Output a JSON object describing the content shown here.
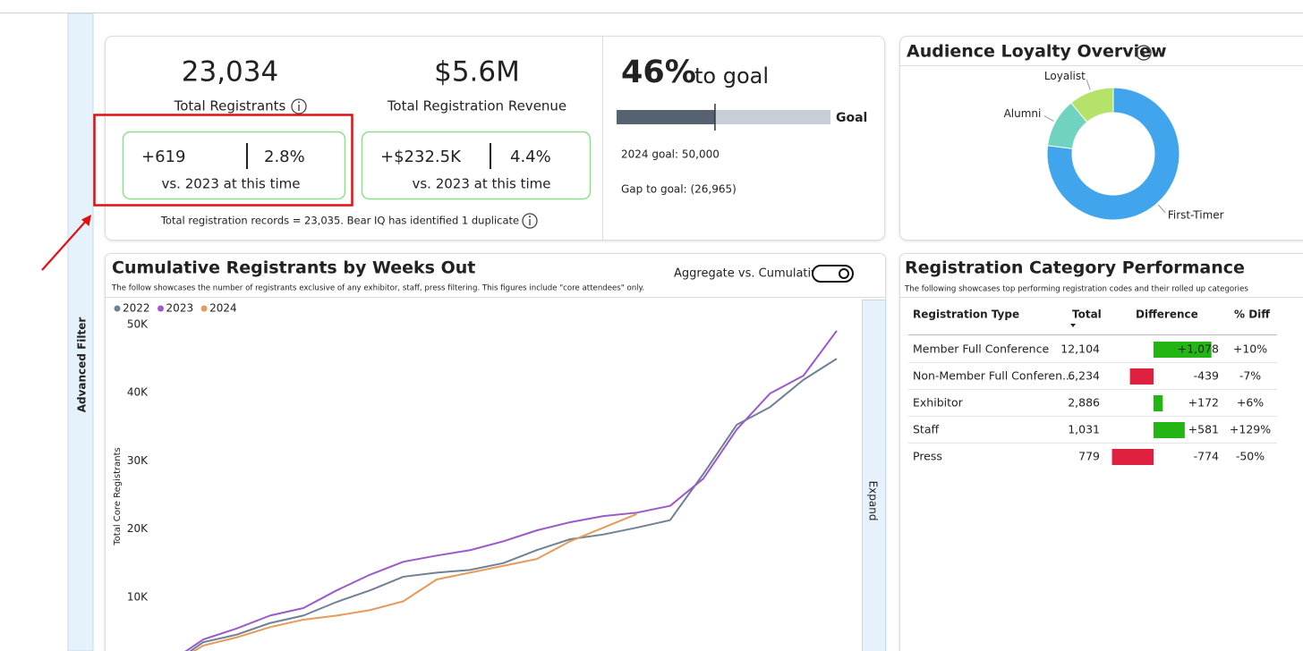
{
  "sidebar": {
    "label": "Advanced Filter"
  },
  "kpis": [
    {
      "value": "23,034",
      "label": "Total Registrants",
      "change": "+619",
      "change_pct": "2.8%",
      "comparison": "vs. 2023 at this time"
    },
    {
      "value": "$5.6M",
      "label": "Total Registration Revenue",
      "change": "+$232.5K",
      "change_pct": "4.4%",
      "comparison": "vs. 2023 at this time"
    }
  ],
  "records_note": "Total registration records = 23,035. Bear IQ has identified 1 duplicate",
  "goal": {
    "percent": {
      "value": 46,
      "label": "46%"
    },
    "suffix": "to goal",
    "bar_label": "Goal",
    "fill_color": "#566272",
    "track_color": "#c8ced8",
    "target": "2024 goal: 50,000",
    "gap": "Gap to goal: (26,965)"
  },
  "chart_data": [
    {
      "type": "donut",
      "title": "Audience Loyalty Overview",
      "categories": [
        "First-Timer",
        "Alumni",
        "Loyalist"
      ],
      "values": [
        77,
        12,
        11
      ],
      "colors": [
        "#41a5ee",
        "#6fd3c0",
        "#b5e36a"
      ]
    },
    {
      "type": "line",
      "title": "Cumulative Registrants by Weeks Out",
      "subtitle": "The follow showcases the number of registrants exclusive of any exhibitor, staff, press filtering. This figures include \"core attendees\" only.",
      "toggle_label": "Aggregate vs. Cumulative",
      "side_tab": "Expand",
      "y_label": "Total Core Registrants",
      "legend": "top-left",
      "categories": [
        null,
        null,
        null,
        null,
        null,
        null,
        null,
        null,
        null,
        null,
        null,
        null,
        null,
        null,
        null,
        null,
        null,
        null,
        null,
        null,
        null
      ],
      "series": [
        {
          "name": "2022",
          "color": "#6e8196",
          "values": [
            0,
            3400,
            4500,
            6200,
            7300,
            9300,
            11000,
            13000,
            13600,
            14000,
            15000,
            16900,
            18500,
            19200,
            20200,
            21300,
            28100,
            35300,
            37900,
            41900,
            45000
          ]
        },
        {
          "name": "2023",
          "color": "#9b59c9",
          "values": [
            500,
            3800,
            5400,
            7300,
            8400,
            11000,
            13300,
            15200,
            16100,
            16900,
            18200,
            19800,
            21000,
            21900,
            22400,
            23400,
            27400,
            34600,
            39900,
            42500,
            49100
          ]
        },
        {
          "name": "2024",
          "color": "#e69a5b",
          "values": [
            0,
            2900,
            4100,
            5600,
            6700,
            7300,
            8100,
            9400,
            12600,
            13600,
            14600,
            15600,
            18200,
            20200,
            22200,
            null,
            null,
            null,
            null,
            null,
            null
          ]
        }
      ],
      "ylim": [
        0,
        50000
      ],
      "yticks": [
        {
          "value": 10000,
          "label": "10K"
        },
        {
          "value": 20000,
          "label": "20K"
        },
        {
          "value": 30000,
          "label": "30K"
        },
        {
          "value": 40000,
          "label": "40K"
        },
        {
          "value": 50000,
          "label": "50K"
        }
      ]
    }
  ],
  "table": {
    "title": "Registration Category Performance",
    "subtitle": "The following showcases top performing registration codes and their rolled up categories",
    "columns": [
      "Registration Type",
      "Total",
      "Difference",
      "% Diff"
    ],
    "positive_color": "#22b514",
    "negative_color": "#e0203f",
    "rows": [
      {
        "type": "Member Full Conference",
        "total": "12,104",
        "difference": {
          "value": 1078,
          "label": "+1,078"
        },
        "pct_diff": "+10%"
      },
      {
        "type": "Non-Member Full Conferen...",
        "total": "6,234",
        "difference": {
          "value": -439,
          "label": "-439"
        },
        "pct_diff": "-7%"
      },
      {
        "type": "Exhibitor",
        "total": "2,886",
        "difference": {
          "value": 172,
          "label": "+172"
        },
        "pct_diff": "+6%"
      },
      {
        "type": "Staff",
        "total": "1,031",
        "difference": {
          "value": 581,
          "label": "+581"
        },
        "pct_diff": "+129%"
      },
      {
        "type": "Press",
        "total": "779",
        "difference": {
          "value": -774,
          "label": "-774"
        },
        "pct_diff": "-50%"
      }
    ]
  }
}
